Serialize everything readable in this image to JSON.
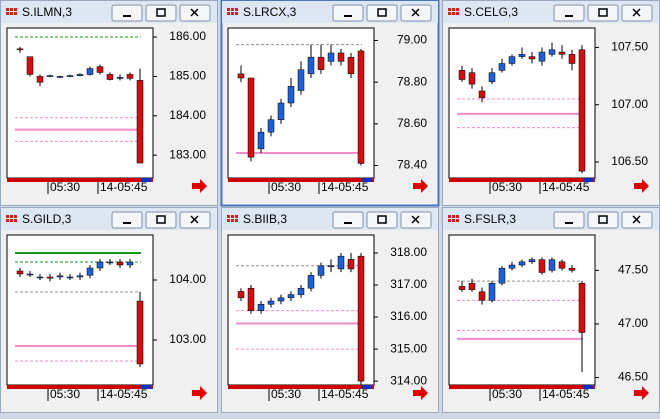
{
  "chart_data": [
    {
      "type": "candlestick",
      "title": "S.ILMN,3",
      "categories": [
        null,
        null,
        null,
        "05:30",
        null,
        null,
        null,
        null,
        "14-05:45",
        null,
        null,
        null,
        null
      ],
      "open": [
        185.7,
        185.5,
        185.0,
        185.0,
        184.98,
        185.0,
        185.02,
        185.05,
        185.25,
        185.05,
        184.95,
        185.05,
        184.9
      ],
      "high": [
        185.75,
        185.5,
        185.05,
        185.05,
        185.02,
        185.05,
        185.08,
        185.25,
        185.3,
        185.1,
        185.05,
        185.1,
        185.2
      ],
      "low": [
        185.6,
        185.0,
        184.75,
        184.98,
        184.96,
        184.98,
        185.0,
        185.02,
        185.05,
        184.9,
        184.9,
        184.9,
        182.8
      ],
      "close": [
        185.68,
        185.05,
        184.85,
        185.02,
        185.0,
        185.02,
        185.05,
        185.2,
        185.1,
        184.92,
        184.98,
        184.95,
        182.8
      ],
      "ylim": [
        182.42,
        186.23
      ],
      "yticks": [
        {
          "value": 183,
          "label": "183.00"
        },
        {
          "value": 184,
          "label": "184.00"
        },
        {
          "value": 185,
          "label": "185.00"
        },
        {
          "value": 186,
          "label": "186.00"
        }
      ],
      "levels": [
        {
          "value": 186.0,
          "color": "#1a9a1a",
          "dashed": true
        },
        {
          "value": 183.95,
          "color": "#f08cc8",
          "dashed": true
        },
        {
          "value": 183.65,
          "color": "#f08cc8",
          "dashed": false
        },
        {
          "value": 183.35,
          "color": "#f08cc8",
          "dashed": true
        }
      ],
      "up_color": "#1f5fd6",
      "down_color": "#d01010"
    },
    {
      "type": "candlestick",
      "title": "S.LRCX,3",
      "categories": [
        null,
        null,
        null,
        "05:30",
        null,
        null,
        null,
        null,
        "14-05:45",
        null,
        null,
        null,
        null
      ],
      "open": [
        78.84,
        78.82,
        78.48,
        78.56,
        78.62,
        78.7,
        78.76,
        78.84,
        78.92,
        78.9,
        78.94,
        78.92,
        78.95
      ],
      "high": [
        78.88,
        78.82,
        78.58,
        78.64,
        78.72,
        78.82,
        78.9,
        78.98,
        78.98,
        78.98,
        78.96,
        78.94,
        78.96
      ],
      "low": [
        78.8,
        78.42,
        78.46,
        78.54,
        78.6,
        78.68,
        78.74,
        78.82,
        78.84,
        78.88,
        78.88,
        78.82,
        78.4
      ],
      "close": [
        78.82,
        78.44,
        78.56,
        78.62,
        78.7,
        78.78,
        78.86,
        78.92,
        78.86,
        78.94,
        78.9,
        78.84,
        78.41
      ],
      "ylim": [
        78.34,
        79.06
      ],
      "yticks": [
        {
          "value": 78.4,
          "label": "78.40"
        },
        {
          "value": 78.6,
          "label": "78.60"
        },
        {
          "value": 78.8,
          "label": "78.80"
        },
        {
          "value": 79,
          "label": "79.00"
        }
      ],
      "levels": [
        {
          "value": 78.98,
          "color": "#909090",
          "dashed": true
        },
        {
          "value": 78.46,
          "color": "#f08cc8",
          "dashed": false
        }
      ],
      "up_color": "#1f5fd6",
      "down_color": "#d01010"
    },
    {
      "type": "candlestick",
      "title": "S.CELG,3",
      "categories": [
        null,
        null,
        null,
        "05:30",
        null,
        null,
        null,
        null,
        "14-05:45",
        null,
        null,
        null,
        null
      ],
      "open": [
        107.3,
        107.28,
        107.12,
        107.2,
        107.3,
        107.36,
        107.42,
        107.42,
        107.38,
        107.44,
        107.46,
        107.44,
        107.48
      ],
      "high": [
        107.34,
        107.32,
        107.16,
        107.32,
        107.4,
        107.44,
        107.5,
        107.46,
        107.5,
        107.54,
        107.52,
        107.48,
        107.52
      ],
      "low": [
        107.2,
        107.14,
        107.02,
        107.18,
        107.28,
        107.34,
        107.4,
        107.36,
        107.34,
        107.42,
        107.4,
        107.3,
        106.4
      ],
      "close": [
        107.22,
        107.18,
        107.06,
        107.28,
        107.36,
        107.42,
        107.44,
        107.4,
        107.46,
        107.48,
        107.44,
        107.36,
        106.42
      ],
      "ylim": [
        106.36,
        107.67
      ],
      "yticks": [
        {
          "value": 106.5,
          "label": "106.50"
        },
        {
          "value": 107,
          "label": "107.00"
        },
        {
          "value": 107.5,
          "label": "107.50"
        }
      ],
      "levels": [
        {
          "value": 107.05,
          "color": "#f08cc8",
          "dashed": true
        },
        {
          "value": 106.92,
          "color": "#f08cc8",
          "dashed": false
        },
        {
          "value": 106.8,
          "color": "#f08cc8",
          "dashed": true
        }
      ],
      "up_color": "#1f5fd6",
      "down_color": "#d01010"
    },
    {
      "type": "candlestick",
      "title": "S.GILD,3",
      "categories": [
        null,
        null,
        null,
        "05:30",
        null,
        null,
        null,
        null,
        "14-05:45",
        null,
        null,
        null,
        null
      ],
      "open": [
        104.15,
        104.1,
        104.05,
        104.05,
        104.05,
        104.05,
        104.05,
        104.08,
        104.2,
        104.3,
        104.3,
        104.25,
        103.65
      ],
      "high": [
        104.2,
        104.15,
        104.1,
        104.1,
        104.12,
        104.1,
        104.12,
        104.25,
        104.35,
        104.35,
        104.35,
        104.35,
        103.8
      ],
      "low": [
        104.05,
        104.05,
        104.0,
        103.98,
        104.0,
        104.0,
        104.0,
        104.03,
        104.15,
        104.25,
        104.2,
        104.2,
        102.55
      ],
      "close": [
        104.1,
        104.1,
        104.05,
        104.03,
        104.07,
        104.05,
        104.07,
        104.2,
        104.3,
        104.3,
        104.25,
        104.3,
        102.6
      ],
      "ylim": [
        102.25,
        104.75
      ],
      "yticks": [
        {
          "value": 103,
          "label": "103.00"
        },
        {
          "value": 104,
          "label": "104.00"
        }
      ],
      "levels": [
        {
          "value": 104.45,
          "color": "#1a9a1a",
          "dashed": false
        },
        {
          "value": 104.3,
          "color": "#1a9a1a",
          "dashed": true
        },
        {
          "value": 103.8,
          "color": "#909090",
          "dashed": true
        },
        {
          "value": 102.9,
          "color": "#f08cc8",
          "dashed": false
        },
        {
          "value": 102.65,
          "color": "#f08cc8",
          "dashed": true
        }
      ],
      "up_color": "#1f5fd6",
      "down_color": "#d01010"
    },
    {
      "type": "candlestick",
      "title": "S.BIIB,3",
      "categories": [
        null,
        null,
        null,
        "05:30",
        null,
        null,
        null,
        null,
        "14-05:45",
        null,
        null,
        null,
        null
      ],
      "open": [
        316.8,
        316.9,
        316.2,
        316.4,
        316.5,
        316.6,
        316.7,
        316.9,
        317.3,
        317.6,
        317.5,
        317.8,
        317.9
      ],
      "high": [
        316.9,
        317.0,
        316.5,
        316.6,
        316.7,
        316.8,
        317.0,
        317.4,
        317.7,
        317.8,
        318.0,
        318.0,
        318.0
      ],
      "low": [
        316.5,
        316.1,
        316.1,
        316.3,
        316.4,
        316.5,
        316.6,
        316.8,
        317.2,
        317.4,
        317.4,
        317.4,
        313.9
      ],
      "close": [
        316.6,
        316.2,
        316.4,
        316.5,
        316.6,
        316.7,
        316.9,
        317.3,
        317.6,
        317.6,
        317.9,
        317.5,
        314.0
      ],
      "ylim": [
        313.88,
        318.56
      ],
      "yticks": [
        {
          "value": 314,
          "label": "314.00"
        },
        {
          "value": 315,
          "label": "315.00"
        },
        {
          "value": 316,
          "label": "316.00"
        },
        {
          "value": 317,
          "label": "317.00"
        },
        {
          "value": 318,
          "label": "318.00"
        }
      ],
      "levels": [
        {
          "value": 317.6,
          "color": "#909090",
          "dashed": true
        },
        {
          "value": 316.2,
          "color": "#f08cc8",
          "dashed": true
        },
        {
          "value": 315.8,
          "color": "#f08cc8",
          "dashed": false
        },
        {
          "value": 315.0,
          "color": "#f08cc8",
          "dashed": true
        }
      ],
      "up_color": "#1f5fd6",
      "down_color": "#d01010"
    },
    {
      "type": "candlestick",
      "title": "S.FSLR,3",
      "categories": [
        null,
        null,
        null,
        "05:30",
        null,
        null,
        null,
        null,
        "14-05:45",
        null,
        null,
        null,
        null
      ],
      "open": [
        47.35,
        47.38,
        47.3,
        47.22,
        47.38,
        47.52,
        47.55,
        47.58,
        47.6,
        47.5,
        47.58,
        47.52,
        47.38
      ],
      "high": [
        47.4,
        47.42,
        47.34,
        47.4,
        47.54,
        47.58,
        47.6,
        47.62,
        47.62,
        47.62,
        47.6,
        47.55,
        47.4
      ],
      "low": [
        47.3,
        47.3,
        47.18,
        47.2,
        47.36,
        47.5,
        47.53,
        47.56,
        47.46,
        47.48,
        47.5,
        47.48,
        46.55
      ],
      "close": [
        47.32,
        47.32,
        47.22,
        47.38,
        47.52,
        47.55,
        47.58,
        47.6,
        47.48,
        47.6,
        47.52,
        47.5,
        46.92
      ],
      "ylim": [
        46.43,
        47.83
      ],
      "yticks": [
        {
          "value": 46.5,
          "label": "46.50"
        },
        {
          "value": 47,
          "label": "47.00"
        },
        {
          "value": 47.5,
          "label": "47.50"
        }
      ],
      "levels": [
        {
          "value": 47.4,
          "color": "#909090",
          "dashed": true
        },
        {
          "value": 47.22,
          "color": "#f08cc8",
          "dashed": true
        },
        {
          "value": 46.94,
          "color": "#f08cc8",
          "dashed": true
        },
        {
          "value": 46.86,
          "color": "#f08cc8",
          "dashed": false
        }
      ],
      "up_color": "#1f5fd6",
      "down_color": "#d01010"
    }
  ]
}
